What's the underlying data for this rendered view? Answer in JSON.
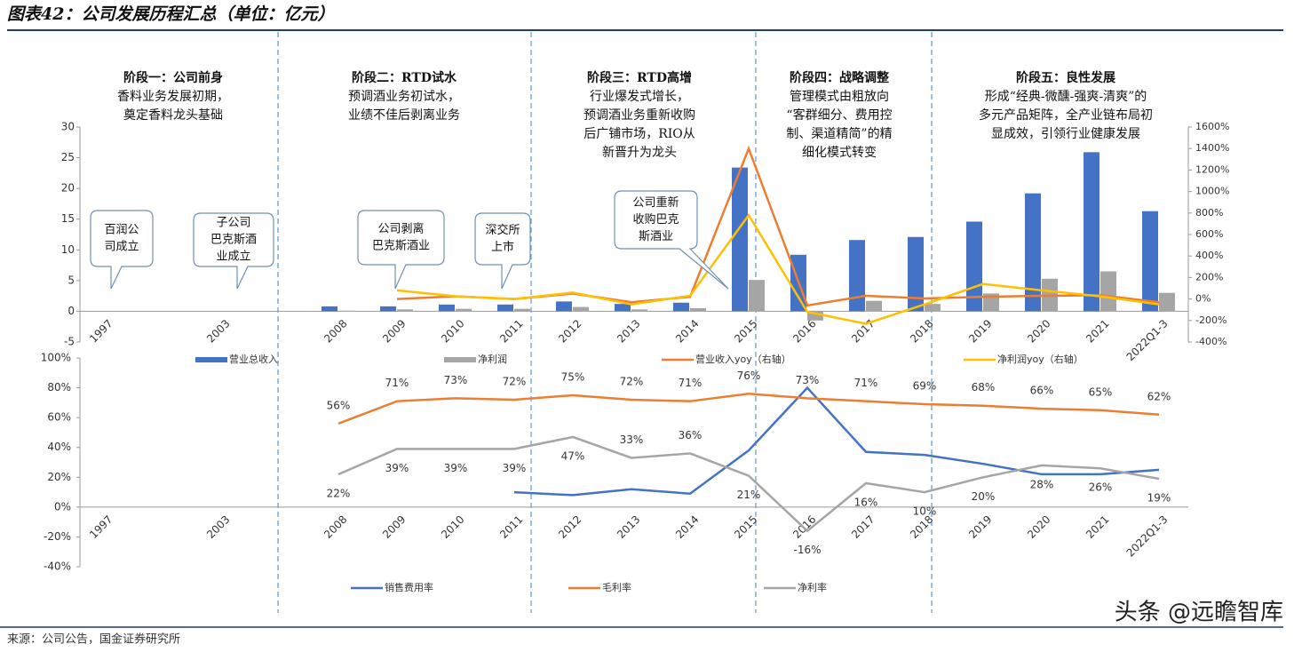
{
  "title": "图表42：公司发展历程汇总（单位：亿元）",
  "source": "来源：公司公告，国金证券研究所",
  "watermark": "头条 @远瞻智库",
  "chart_data": [
    {
      "type": "bar",
      "categories": [
        "1997",
        null,
        "2003",
        null,
        "2008",
        "2009",
        "2010",
        "2011",
        "2012",
        "2013",
        "2014",
        "2015",
        "2016",
        "2017",
        "2018",
        "2019",
        "2020",
        "2021",
        "2022Q1-3"
      ],
      "series": [
        {
          "name": "营业总收入",
          "type": "bar",
          "color": "#4472c4",
          "values": [
            null,
            null,
            null,
            null,
            0.8,
            0.8,
            1.1,
            1.1,
            1.6,
            1.2,
            1.4,
            23.4,
            9.2,
            11.6,
            12.1,
            14.6,
            19.2,
            25.9,
            16.3
          ]
        },
        {
          "name": "净利润",
          "type": "bar",
          "color": "#a5a5a5",
          "values": [
            null,
            null,
            null,
            null,
            0.1,
            0.3,
            0.4,
            0.4,
            0.7,
            0.3,
            0.5,
            5.1,
            -1.5,
            1.7,
            1.2,
            2.9,
            5.3,
            6.5,
            3.0
          ]
        },
        {
          "name": "营业收入yoy（右轴）",
          "type": "line",
          "axis": "y2",
          "color": "#ed7d31",
          "values": [
            null,
            null,
            null,
            null,
            null,
            0,
            25,
            0,
            50,
            -30,
            20,
            1400,
            -60,
            30,
            5,
            20,
            30,
            35,
            -30
          ]
        },
        {
          "name": "净利润yoy（右轴）",
          "type": "line",
          "axis": "y2",
          "color": "#ffc000",
          "values": [
            null,
            null,
            null,
            null,
            null,
            80,
            25,
            0,
            60,
            -50,
            30,
            780,
            -120,
            -230,
            -50,
            140,
            80,
            25,
            -50
          ]
        }
      ],
      "ylim": [
        -5,
        30
      ],
      "yticks": [
        -5,
        0,
        5,
        10,
        15,
        20,
        25,
        30
      ],
      "y2lim": [
        -400,
        1600
      ],
      "y2ticks": [
        {
          "value": -400,
          "label": "-400%"
        },
        {
          "value": -200,
          "label": "-200%"
        },
        {
          "value": 0,
          "label": "0%"
        },
        {
          "value": 200,
          "label": "200%"
        },
        {
          "value": 400,
          "label": "400%"
        },
        {
          "value": 600,
          "label": "600%"
        },
        {
          "value": 800,
          "label": "800%"
        },
        {
          "value": 1000,
          "label": "1000%"
        },
        {
          "value": 1200,
          "label": "1200%"
        },
        {
          "value": 1400,
          "label": "1400%"
        },
        {
          "value": 1600,
          "label": "1600%"
        }
      ],
      "legend": "bottom",
      "stages": [
        {
          "title": "阶段一：公司前身",
          "lines": [
            "香料业务发展初期，",
            "奠定香料龙头基础"
          ]
        },
        {
          "title": "阶段二：RTD试水",
          "lines": [
            "预调酒业务初试水，",
            "业绩不佳后剥离业务"
          ]
        },
        {
          "title": "阶段三：RTD高增",
          "lines": [
            "行业爆发式增长，",
            "预调酒业务重新收购",
            "后广铺市场，RIO从",
            "新晋升为龙头"
          ]
        },
        {
          "title": "阶段四：战略调整",
          "lines": [
            "管理模式由粗放向",
            "“客群细分、费用控",
            "制、渠道精简”的精",
            "细化模式转变"
          ]
        },
        {
          "title": "阶段五：良性发展",
          "lines": [
            "形成“经典-微醺-强爽-清爽”的",
            "多元产品矩阵，全产业链布局初",
            "显成效，引领行业健康发展"
          ]
        }
      ],
      "callouts": [
        {
          "lines": [
            "百润公",
            "司成立"
          ]
        },
        {
          "lines": [
            "子公司",
            "巴克斯酒",
            "业成立"
          ]
        },
        {
          "lines": [
            "公司剥离",
            "巴克斯酒业"
          ]
        },
        {
          "lines": [
            "深交所",
            "上市"
          ]
        },
        {
          "lines": [
            "公司重新",
            "收购巴克",
            "斯酒业"
          ]
        }
      ]
    },
    {
      "type": "line",
      "categories": [
        "1997",
        null,
        "2003",
        null,
        "2008",
        "2009",
        "2010",
        "2011",
        "2012",
        "2013",
        "2014",
        "2015",
        "2016",
        "2017",
        "2018",
        "2019",
        "2020",
        "2021",
        "2022Q1-3"
      ],
      "series": [
        {
          "name": "销售费用率",
          "color": "#4472c4",
          "values": [
            null,
            null,
            null,
            null,
            null,
            null,
            null,
            10,
            8,
            12,
            9,
            38,
            80,
            37,
            35,
            29,
            22,
            22,
            25
          ]
        },
        {
          "name": "毛利率",
          "color": "#ed7d31",
          "values": [
            null,
            null,
            null,
            null,
            56,
            71,
            73,
            72,
            75,
            72,
            71,
            76,
            73,
            71,
            69,
            68,
            66,
            65,
            62
          ],
          "value_labels": [
            null,
            null,
            null,
            null,
            "56%",
            "71%",
            "73%",
            "72%",
            "75%",
            "72%",
            "71%",
            "76%",
            "73%",
            "71%",
            "69%",
            "68%",
            "66%",
            "65%",
            "62%"
          ]
        },
        {
          "name": "净利率",
          "color": "#a5a5a5",
          "values": [
            null,
            null,
            null,
            null,
            22,
            39,
            39,
            39,
            47,
            33,
            36,
            21,
            -16,
            16,
            10,
            20,
            28,
            26,
            19
          ],
          "value_labels": [
            null,
            null,
            null,
            null,
            "22%",
            "39%",
            "39%",
            "39%",
            "47%",
            "33%",
            "36%",
            "21%",
            "-16%",
            "16%",
            "10%",
            "20%",
            "28%",
            "26%",
            "19%"
          ]
        }
      ],
      "ylim": [
        -40,
        100
      ],
      "yticks": [
        {
          "value": -40,
          "label": "-40%"
        },
        {
          "value": -20,
          "label": "-20%"
        },
        {
          "value": 0,
          "label": "0%"
        },
        {
          "value": 20,
          "label": "20%"
        },
        {
          "value": 40,
          "label": "40%"
        },
        {
          "value": 60,
          "label": "60%"
        },
        {
          "value": 80,
          "label": "80%"
        },
        {
          "value": 100,
          "label": "100%"
        }
      ],
      "legend": "bottom"
    }
  ]
}
